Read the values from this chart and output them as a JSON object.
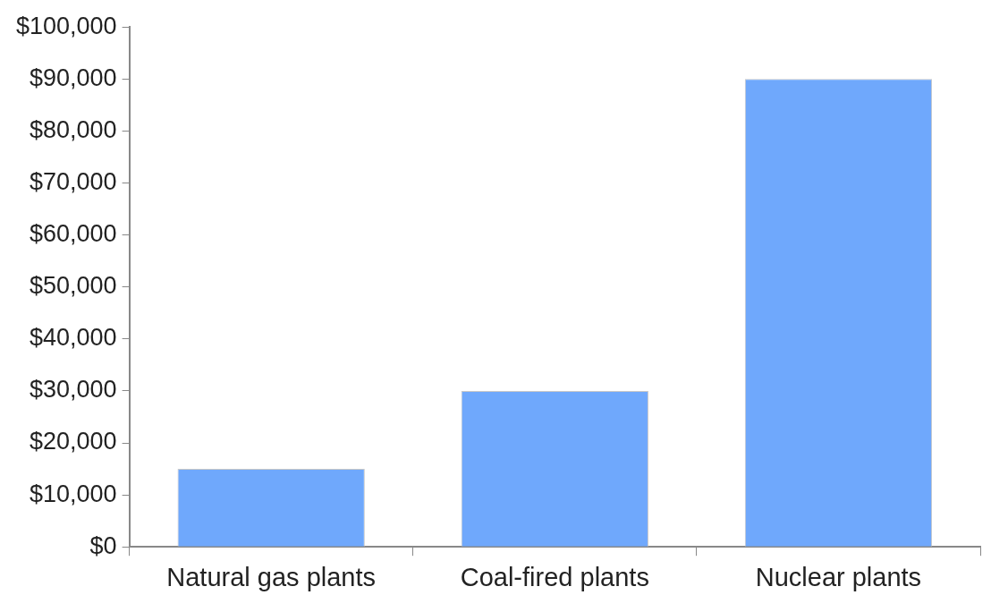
{
  "chart_data": {
    "type": "bar",
    "categories": [
      "Natural gas plants",
      "Coal-fired plants",
      "Nuclear plants"
    ],
    "values": [
      15000,
      30000,
      90000
    ],
    "color": "#6fa8fc",
    "ylim": [
      0,
      100000
    ],
    "yticks": [
      {
        "value": 0,
        "label": "$0"
      },
      {
        "value": 10000,
        "label": "$10,000"
      },
      {
        "value": 20000,
        "label": "$20,000"
      },
      {
        "value": 30000,
        "label": "$30,000"
      },
      {
        "value": 40000,
        "label": "$40,000"
      },
      {
        "value": 50000,
        "label": "$50,000"
      },
      {
        "value": 60000,
        "label": "$60,000"
      },
      {
        "value": 70000,
        "label": "$70,000"
      },
      {
        "value": 80000,
        "label": "$80,000"
      },
      {
        "value": 90000,
        "label": "$90,000"
      },
      {
        "value": 100000,
        "label": "$100,000"
      }
    ],
    "grid": false,
    "legend": false
  }
}
